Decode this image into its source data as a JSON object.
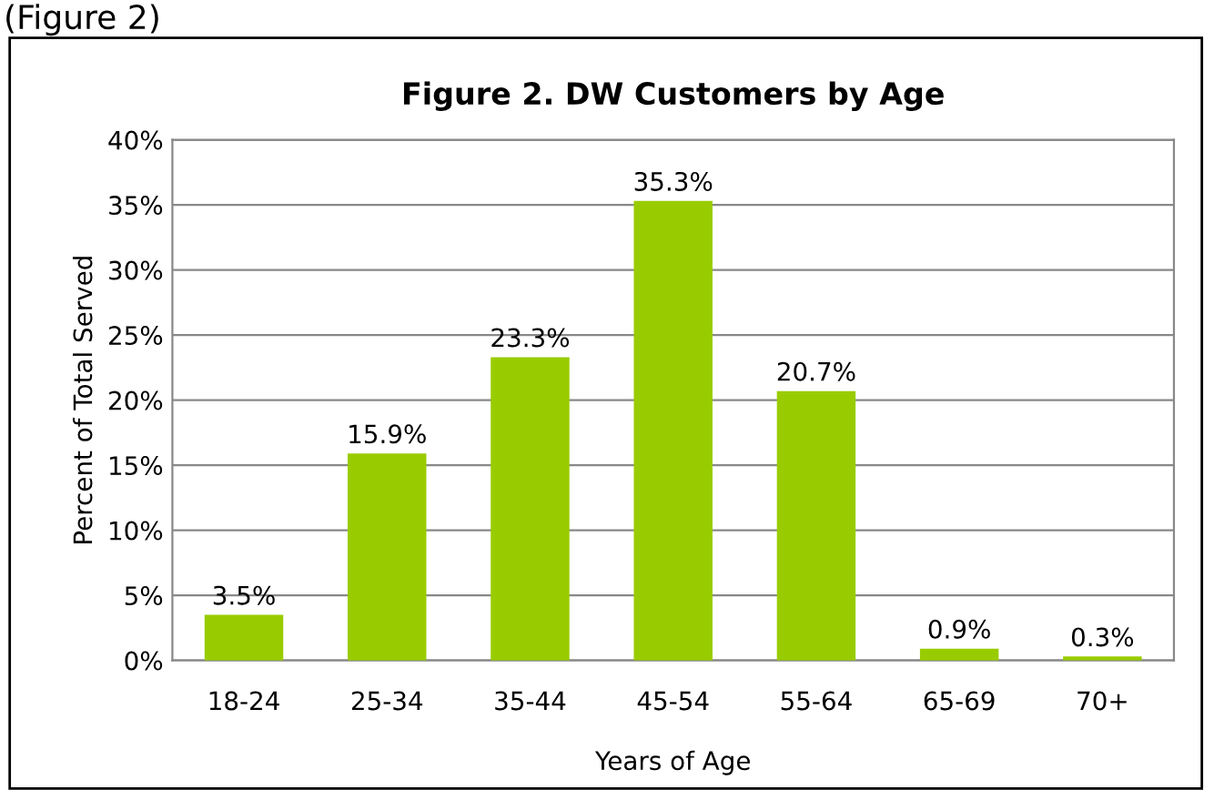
{
  "chart_data": {
    "type": "bar",
    "title": "Figure 2. DW Customers by Age",
    "xlabel": "Years of Age",
    "ylabel": "Percent of Total Served",
    "annotations": [
      "(Figure 2)"
    ],
    "categories": [
      "18-24",
      "25-34",
      "35-44",
      "45-54",
      "55-64",
      "65-69",
      "70+"
    ],
    "values": [
      3.5,
      15.9,
      23.3,
      35.3,
      20.7,
      0.9,
      0.3
    ],
    "value_labels": [
      "3.5%",
      "15.9%",
      "23.3%",
      "35.3%",
      "20.7%",
      "0.9%",
      "0.3%"
    ],
    "color": "#99cc00",
    "ylim": [
      0,
      40
    ],
    "yticks": [
      {
        "value": 0,
        "label": "0%"
      },
      {
        "value": 5,
        "label": "5%"
      },
      {
        "value": 10,
        "label": "10%"
      },
      {
        "value": 15,
        "label": "15%"
      },
      {
        "value": 20,
        "label": "20%"
      },
      {
        "value": 25,
        "label": "25%"
      },
      {
        "value": 30,
        "label": "30%"
      },
      {
        "value": 35,
        "label": "35%"
      },
      {
        "value": 40,
        "label": "40%"
      }
    ],
    "grid": "y",
    "legend": false
  }
}
